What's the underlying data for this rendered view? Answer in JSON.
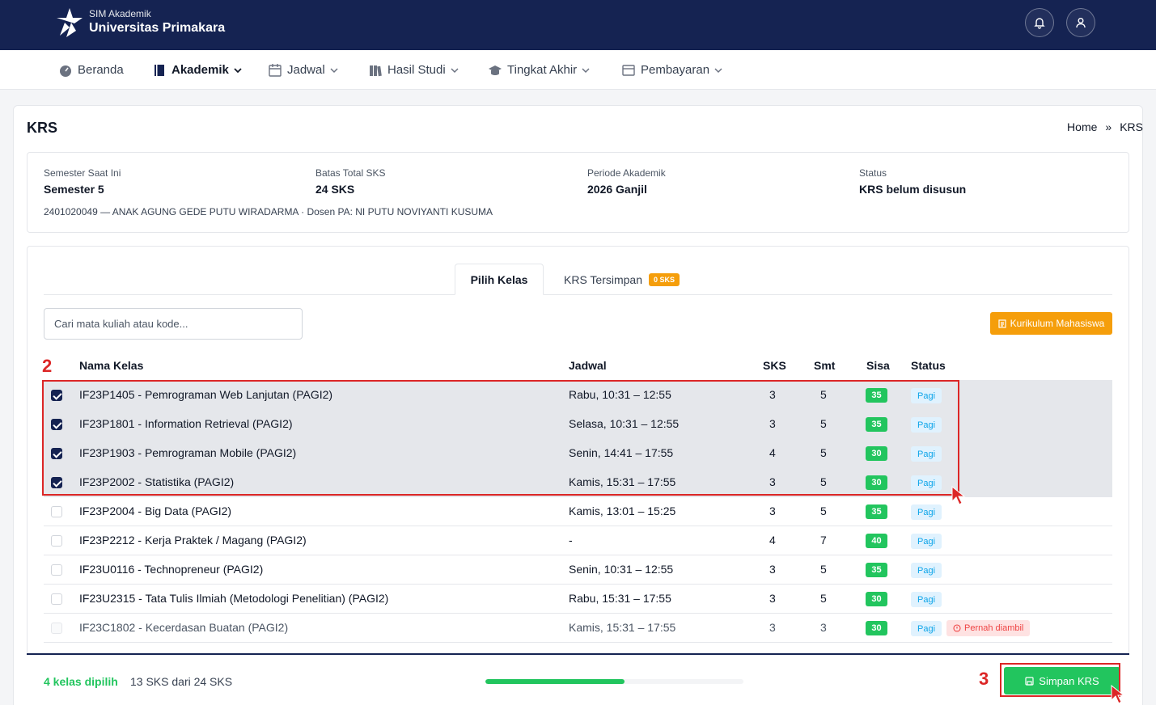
{
  "header": {
    "app_sub": "SIM Akademik",
    "app_title": "Universitas Primakara",
    "notification_icon": "bell-icon",
    "profile_icon": "user-icon"
  },
  "nav": {
    "items": [
      {
        "label": "Beranda",
        "icon": "dashboard-icon"
      },
      {
        "label": "Akademik",
        "icon": "book-icon",
        "active": true
      },
      {
        "label": "Jadwal",
        "icon": "calendar-icon"
      },
      {
        "label": "Hasil Studi",
        "icon": "books-icon"
      },
      {
        "label": "Tingkat Akhir",
        "icon": "graduation-cap-icon"
      },
      {
        "label": "Pembayaran",
        "icon": "wallet-icon"
      }
    ]
  },
  "page": {
    "title": "KRS",
    "breadcrumb": [
      "Home",
      "»",
      "KRS"
    ]
  },
  "info": {
    "semester_label": "Semester Saat Ini",
    "semester_value": "Semester 5",
    "batas_label": "Batas Total SKS",
    "batas_value": "24 SKS",
    "periode_label": "Periode Akademik",
    "periode_value": "2026 Ganjil",
    "status_label": "Status",
    "status_value": "KRS belum disusun",
    "student_line": "2401020049 — ANAK AGUNG GEDE PUTU WIRADARMA · Dosen PA: NI PUTU NOVIYANTI KUSUMA"
  },
  "tabs": {
    "pilih": "Pilih Kelas",
    "tersimpan": "KRS Tersimpan",
    "tersimpan_badge": "0 SKS"
  },
  "search": {
    "placeholder": "Cari mata kuliah atau kode..."
  },
  "kurikulum_button": "Kurikulum Mahasiswa",
  "table": {
    "headers": {
      "nama": "Nama Kelas",
      "jadwal": "Jadwal",
      "sks": "SKS",
      "smt": "Smt",
      "sisa": "Sisa",
      "status": "Status"
    },
    "rows": [
      {
        "name": "IF23P1405 - Pemrograman Web Lanjutan (PAGI2)",
        "jadwal": "Rabu, 10:31 – 12:55",
        "sks": "3",
        "smt": "5",
        "sisa": "35",
        "status": "Pagi",
        "checked": true
      },
      {
        "name": "IF23P1801 - Information Retrieval (PAGI2)",
        "jadwal": "Selasa, 10:31 – 12:55",
        "sks": "3",
        "smt": "5",
        "sisa": "35",
        "status": "Pagi",
        "checked": true
      },
      {
        "name": "IF23P1903 - Pemrograman Mobile (PAGI2)",
        "jadwal": "Senin, 14:41 – 17:55",
        "sks": "4",
        "smt": "5",
        "sisa": "30",
        "status": "Pagi",
        "checked": true
      },
      {
        "name": "IF23P2002 - Statistika (PAGI2)",
        "jadwal": "Kamis, 15:31 – 17:55",
        "sks": "3",
        "smt": "5",
        "sisa": "30",
        "status": "Pagi",
        "checked": true
      },
      {
        "name": "IF23P2004 - Big Data (PAGI2)",
        "jadwal": "Kamis, 13:01 – 15:25",
        "sks": "3",
        "smt": "5",
        "sisa": "35",
        "status": "Pagi",
        "checked": false
      },
      {
        "name": "IF23P2212 - Kerja Praktek / Magang (PAGI2)",
        "jadwal": "-",
        "sks": "4",
        "smt": "7",
        "sisa": "40",
        "status": "Pagi",
        "checked": false
      },
      {
        "name": "IF23U0116 - Technopreneur (PAGI2)",
        "jadwal": "Senin, 10:31 – 12:55",
        "sks": "3",
        "smt": "5",
        "sisa": "35",
        "status": "Pagi",
        "checked": false
      },
      {
        "name": "IF23U2315 - Tata Tulis Ilmiah (Metodologi Penelitian) (PAGI2)",
        "jadwal": "Rabu, 15:31 – 17:55",
        "sks": "3",
        "smt": "5",
        "sisa": "30",
        "status": "Pagi",
        "checked": false
      },
      {
        "name": "IF23C1802 - Kecerdasan Buatan (PAGI2)",
        "jadwal": "Kamis, 15:31 – 17:55",
        "sks": "3",
        "smt": "3",
        "sisa": "30",
        "status": "Pagi",
        "extra": "Pernah diambil",
        "checked": false,
        "disabled": true
      }
    ]
  },
  "footer": {
    "selected": "4 kelas dipilih",
    "sks_summary": "13 SKS dari 24 SKS",
    "progress_fraction": 0.54,
    "save_button": "Simpan KRS"
  },
  "annotations": {
    "box2_label": "2",
    "box3_label": "3"
  },
  "colors": {
    "primary": "#152352",
    "success": "#22c55e",
    "warning": "#f59e0b",
    "annotation": "#dc2626"
  }
}
